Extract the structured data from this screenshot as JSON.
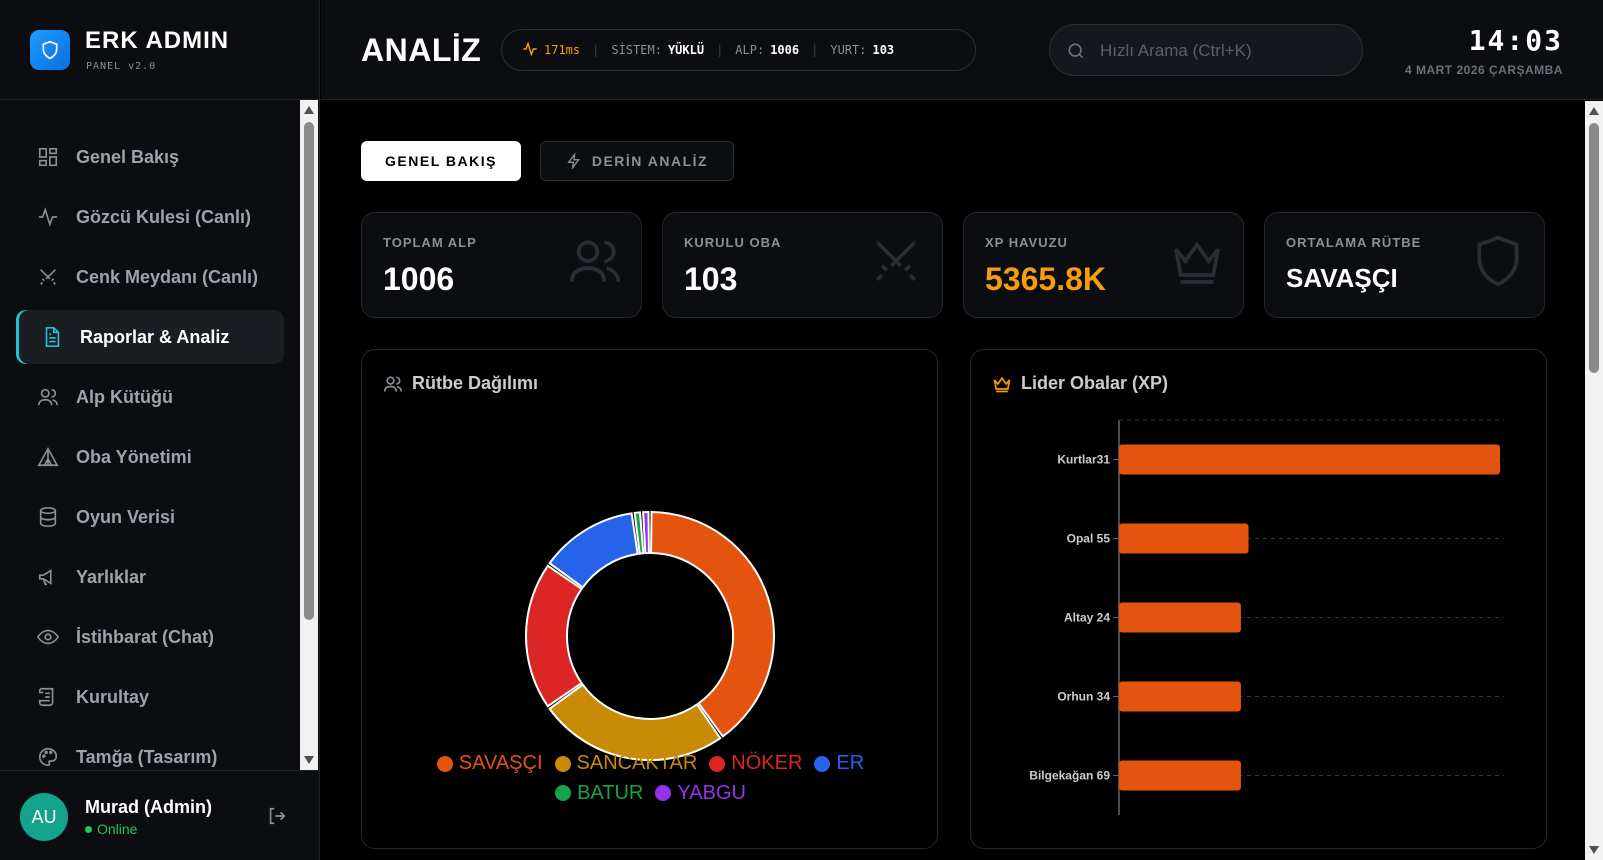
{
  "brand": {
    "title": "ERK ADMIN",
    "subtitle": "PANEL v2.0"
  },
  "sidebar": {
    "items": [
      {
        "label": "Genel Bakış",
        "icon": "dashboard-icon",
        "active": false
      },
      {
        "label": "Gözcü Kulesi (Canlı)",
        "icon": "activity-icon",
        "active": false
      },
      {
        "label": "Cenk Meydanı (Canlı)",
        "icon": "swords-icon",
        "active": false
      },
      {
        "label": "Raporlar & Analiz",
        "icon": "file-text-icon",
        "active": true
      },
      {
        "label": "Alp Kütüğü",
        "icon": "users-icon",
        "active": false
      },
      {
        "label": "Oba Yönetimi",
        "icon": "tent-icon",
        "active": false
      },
      {
        "label": "Oyun Verisi",
        "icon": "database-icon",
        "active": false
      },
      {
        "label": "Yarlıklar",
        "icon": "megaphone-icon",
        "active": false
      },
      {
        "label": "İstihbarat (Chat)",
        "icon": "eye-icon",
        "active": false
      },
      {
        "label": "Kurultay",
        "icon": "scroll-icon",
        "active": false
      },
      {
        "label": "Tamğa (Tasarım)",
        "icon": "palette-icon",
        "active": false
      }
    ]
  },
  "user": {
    "initials": "AU",
    "name": "Murad (Admin)",
    "status": "Online"
  },
  "header": {
    "title": "ANALİZ",
    "ping": "171ms",
    "system_label": "SİSTEM:",
    "system_value": "YÜKLÜ",
    "alp_label": "ALP:",
    "alp_value": "1006",
    "yurt_label": "YURT:",
    "yurt_value": "103",
    "search_placeholder": "Hızlı Arama (Ctrl+K)",
    "time": "14:03",
    "date": "4 MART 2026 ÇARŞAMBA"
  },
  "tabs": {
    "general": "GENEL BAKIŞ",
    "deep": "DERİN ANALİZ"
  },
  "stats": [
    {
      "label": "TOPLAM ALP",
      "value": "1006",
      "icon": "users-icon"
    },
    {
      "label": "KURULU OBA",
      "value": "103",
      "icon": "swords-icon"
    },
    {
      "label": "XP HAVUZU",
      "value": "5365.8K",
      "icon": "crown-icon",
      "color": "#f59e0b"
    },
    {
      "label": "ORTALAMA RÜTBE",
      "value": "SAVAŞÇI",
      "icon": "shield-icon"
    }
  ],
  "panels": {
    "rank_title": "Rütbe Dağılımı",
    "leader_title": "Lider Obalar (XP)"
  },
  "chart_data": [
    {
      "type": "pie",
      "categories": [
        "SAVAŞÇI",
        "SANCAKTAR",
        "NÖKER",
        "ER",
        "BATUR",
        "YABGU"
      ],
      "values": [
        37,
        23,
        18,
        12,
        1,
        1
      ],
      "colors": [
        "#e5540f",
        "#c98a05",
        "#dc2626",
        "#2563eb",
        "#16a34a",
        "#9333ea"
      ],
      "legend": "bottom"
    },
    {
      "type": "bar",
      "orientation": "horizontal",
      "categories": [
        "Kurtlar31",
        "Opal 55",
        "Altay 24",
        "Orhun 34",
        "Bilgekağan 69"
      ],
      "values": [
        100,
        34,
        32,
        32,
        32
      ],
      "color": "#e5540f",
      "grid": true
    }
  ]
}
